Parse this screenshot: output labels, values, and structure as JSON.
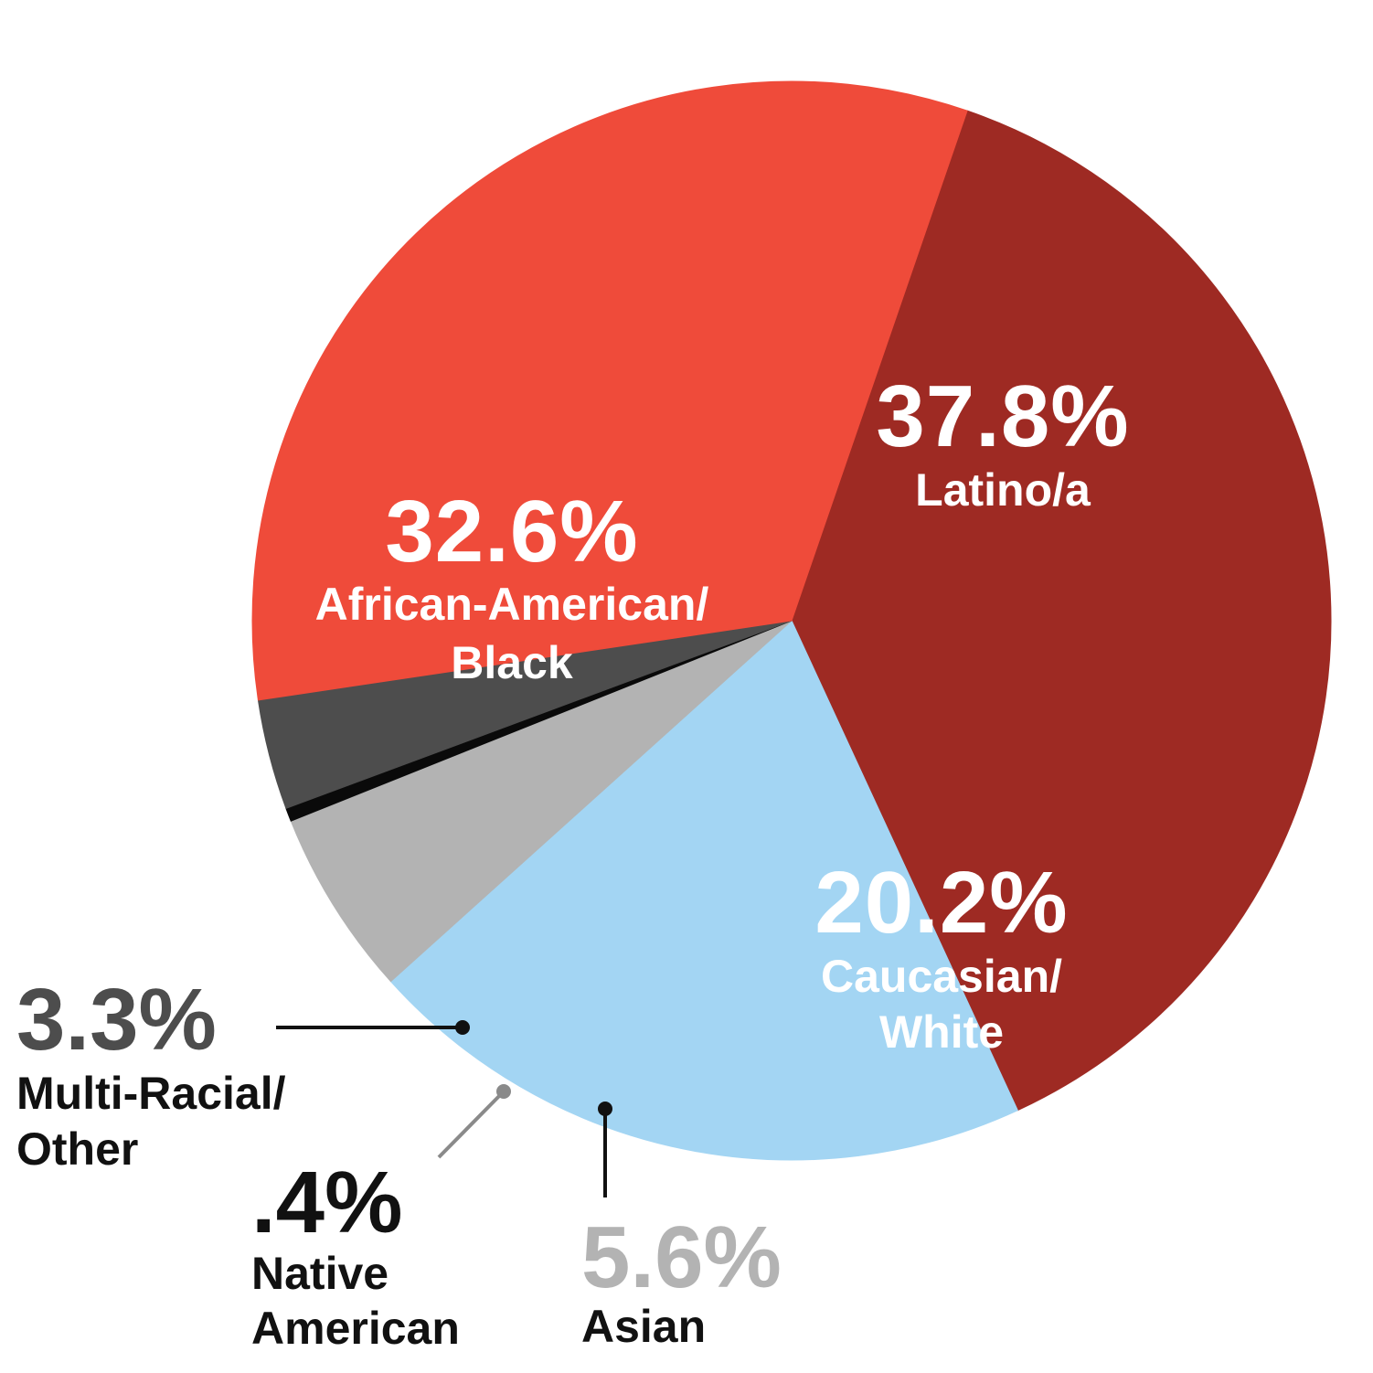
{
  "chart_data": {
    "type": "pie",
    "slices": [
      {
        "key": "latino",
        "value": 37.8,
        "value_label": "37.8%",
        "label_lines": [
          "Latino/a"
        ],
        "color": "#9e2a23",
        "label_color": "#ffffff"
      },
      {
        "key": "white",
        "value": 20.2,
        "value_label": "20.2%",
        "label_lines": [
          "Caucasian/",
          "White"
        ],
        "color": "#a3d5f3",
        "label_color": "#ffffff"
      },
      {
        "key": "asian",
        "value": 5.6,
        "value_label": "5.6%",
        "label_lines": [
          "Asian"
        ],
        "color": "#b3b3b3",
        "label_color": "#b3b3b3",
        "subcolor": "#111111"
      },
      {
        "key": "native",
        "value": 0.4,
        "value_label": ".4%",
        "label_lines": [
          "Native",
          "American"
        ],
        "color": "#0a0a0a",
        "label_color": "#111111",
        "leader_color": "#8a8a8a"
      },
      {
        "key": "multi",
        "value": 3.3,
        "value_label": "3.3%",
        "label_lines": [
          "Multi-Racial/",
          "Other"
        ],
        "color": "#4d4d4d",
        "label_color": "#4d4d4d",
        "subcolor": "#111111"
      },
      {
        "key": "black",
        "value": 32.6,
        "value_label": "32.6%",
        "label_lines": [
          "African-American/",
          "Black"
        ],
        "color": "#ef4b3a",
        "label_color": "#ffffff"
      }
    ]
  }
}
